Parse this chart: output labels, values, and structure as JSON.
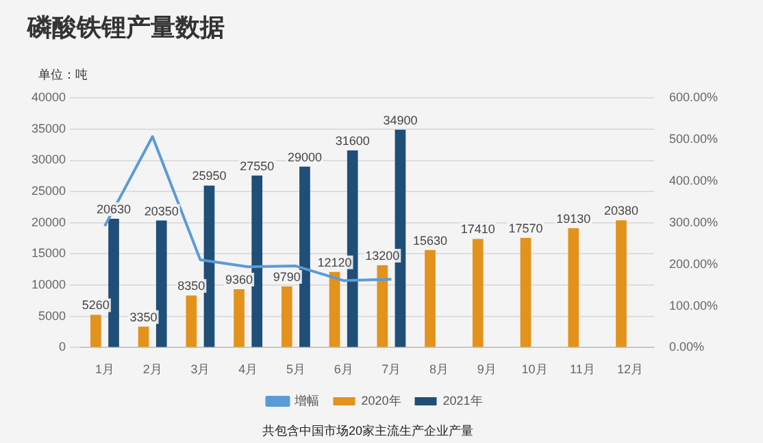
{
  "chart_data": {
    "type": "bar",
    "title": "磷酸铁锂产量数据",
    "ylabel": "单位：吨",
    "categories": [
      "1月",
      "2月",
      "3月",
      "4月",
      "5月",
      "6月",
      "7月",
      "8月",
      "9月",
      "10月",
      "11月",
      "12月"
    ],
    "series": [
      {
        "name": "2020年",
        "color": "#e3921c",
        "values": [
          5260,
          3350,
          8350,
          9360,
          9790,
          12120,
          13200,
          15630,
          17410,
          17570,
          19130,
          20380
        ],
        "value_labels": [
          "5260",
          "3350",
          "8350",
          "9360",
          "9790",
          "12120",
          "13200",
          "15630",
          "17410",
          "17570",
          "19130",
          "20380"
        ]
      },
      {
        "name": "2021年",
        "color": "#1f4e79",
        "values": [
          20630,
          20350,
          25950,
          27550,
          29000,
          31600,
          34900,
          null,
          null,
          null,
          null,
          null
        ],
        "value_labels": [
          "20630",
          "20350",
          "25950",
          "27550",
          "29000",
          "31600",
          "34900",
          null,
          null,
          null,
          null,
          null
        ]
      },
      {
        "name": "增幅",
        "type": "line",
        "axis": "y2",
        "color": "#5b9bd5",
        "values": [
          292,
          507,
          211,
          194,
          196,
          161,
          164,
          null,
          null,
          null,
          null,
          null
        ]
      }
    ],
    "ylim": [
      0,
      40000
    ],
    "yticks": [
      0,
      5000,
      10000,
      15000,
      20000,
      25000,
      30000,
      35000,
      40000
    ],
    "y2lim": [
      0,
      600
    ],
    "y2ticks": [
      {
        "value": 0,
        "label": "0.00%"
      },
      {
        "value": 100,
        "label": "100.00%"
      },
      {
        "value": 200,
        "label": "200.00%"
      },
      {
        "value": 300,
        "label": "300.00%"
      },
      {
        "value": 400,
        "label": "400.00%"
      },
      {
        "value": 500,
        "label": "500.00%"
      },
      {
        "value": 600,
        "label": "600.00%"
      }
    ],
    "grid": "y",
    "legend": "bottom",
    "marker": "none",
    "annotations": [
      "共包含中国市场20家主流生产企业产量"
    ]
  }
}
